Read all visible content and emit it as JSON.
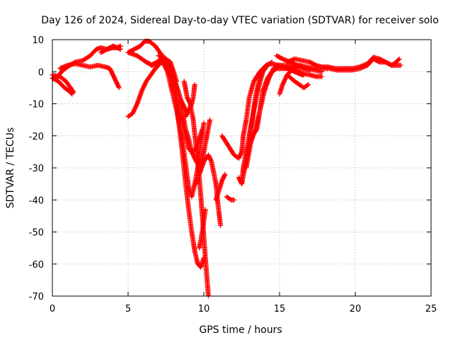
{
  "chart_data": {
    "type": "scatter",
    "title": "Day 126 of 2024, Sidereal Day-to-day VTEC variation (SDTVAR) for receiver solo",
    "xlabel": "GPS time / hours",
    "ylabel": "SDTVAR / TECUs",
    "xlim": [
      0,
      25
    ],
    "ylim": [
      -70,
      10
    ],
    "xticks": [
      0,
      5,
      10,
      15,
      20,
      25
    ],
    "yticks": [
      10,
      0,
      -10,
      -20,
      -30,
      -40,
      -50,
      -60,
      -70
    ],
    "grid": true,
    "marker": "+",
    "series": [
      {
        "color": "#ff0000",
        "tracks": [
          [
            [
              0.0,
              -2
            ],
            [
              0.3,
              -2
            ],
            [
              0.6,
              0
            ],
            [
              1.0,
              1.5
            ],
            [
              1.5,
              3
            ],
            [
              2.0,
              3.5
            ],
            [
              2.5,
              5
            ],
            [
              2.9,
              7
            ],
            [
              3.2,
              7.5
            ],
            [
              3.6,
              7
            ],
            [
              4.0,
              7.5
            ],
            [
              4.3,
              7.5
            ],
            [
              4.5,
              8
            ]
          ],
          [
            [
              0.0,
              -1
            ],
            [
              0.5,
              -1.5
            ],
            [
              0.9,
              -3
            ],
            [
              1.2,
              -5
            ],
            [
              1.4,
              -6.5
            ]
          ],
          [
            [
              0.0,
              -2
            ],
            [
              0.4,
              -3
            ],
            [
              0.8,
              -5
            ],
            [
              1.1,
              -6
            ],
            [
              1.3,
              -7
            ]
          ],
          [
            [
              0.5,
              1
            ],
            [
              1.0,
              2
            ],
            [
              1.5,
              2.5
            ],
            [
              2.0,
              2
            ],
            [
              2.5,
              1.5
            ],
            [
              3.0,
              2
            ],
            [
              3.5,
              1.5
            ],
            [
              3.8,
              1
            ],
            [
              4.0,
              -1
            ],
            [
              4.2,
              -3
            ],
            [
              4.4,
              -5
            ]
          ],
          [
            [
              3.2,
              6
            ],
            [
              3.6,
              7
            ],
            [
              4.0,
              8
            ],
            [
              4.3,
              7.5
            ],
            [
              4.5,
              7
            ]
          ],
          [
            [
              5.0,
              6
            ],
            [
              5.4,
              7
            ],
            [
              5.8,
              8
            ],
            [
              6.1,
              9.5
            ],
            [
              6.4,
              9.5
            ],
            [
              6.8,
              8
            ],
            [
              7.1,
              6
            ],
            [
              7.3,
              4
            ],
            [
              7.6,
              2.5
            ],
            [
              7.9,
              0
            ],
            [
              8.1,
              -3
            ],
            [
              8.4,
              -8
            ],
            [
              8.6,
              -13
            ],
            [
              8.8,
              -18
            ],
            [
              9.0,
              -21
            ],
            [
              9.2,
              -25
            ],
            [
              9.5,
              -28
            ],
            [
              9.8,
              -30
            ]
          ],
          [
            [
              5.0,
              -14
            ],
            [
              5.3,
              -13
            ],
            [
              5.6,
              -10
            ],
            [
              5.9,
              -6
            ],
            [
              6.2,
              -3
            ],
            [
              6.5,
              -1
            ],
            [
              6.8,
              1
            ],
            [
              7.0,
              2
            ],
            [
              7.2,
              3
            ],
            [
              7.4,
              2
            ],
            [
              7.6,
              0
            ],
            [
              7.8,
              -4
            ],
            [
              8.0,
              -8
            ],
            [
              8.2,
              -12
            ],
            [
              8.4,
              -17
            ],
            [
              8.6,
              -22
            ],
            [
              8.8,
              -29
            ],
            [
              9.0,
              -36
            ],
            [
              9.2,
              -39
            ],
            [
              9.4,
              -35
            ],
            [
              9.6,
              -30
            ],
            [
              9.8,
              -22
            ],
            [
              10.0,
              -16
            ]
          ],
          [
            [
              5.0,
              6
            ],
            [
              5.6,
              5
            ],
            [
              6.2,
              3
            ],
            [
              6.6,
              2
            ],
            [
              7.0,
              3
            ],
            [
              7.3,
              4
            ],
            [
              7.6,
              3
            ],
            [
              7.9,
              -2
            ],
            [
              8.2,
              -8
            ],
            [
              8.5,
              -14
            ],
            [
              8.8,
              -20
            ],
            [
              9.0,
              -24
            ],
            [
              9.2,
              -25
            ],
            [
              9.5,
              -24
            ],
            [
              9.7,
              -21
            ],
            [
              9.9,
              -18
            ]
          ],
          [
            [
              6.5,
              2
            ],
            [
              6.9,
              3
            ],
            [
              7.2,
              4
            ],
            [
              7.5,
              4
            ],
            [
              7.8,
              3
            ],
            [
              8.0,
              0
            ],
            [
              8.2,
              -3
            ]
          ],
          [
            [
              7.0,
              5
            ],
            [
              7.3,
              4.5
            ],
            [
              7.6,
              3
            ],
            [
              7.8,
              0
            ],
            [
              8.0,
              -5
            ],
            [
              8.2,
              -10
            ],
            [
              8.4,
              -18
            ],
            [
              8.6,
              -26
            ],
            [
              8.8,
              -35
            ],
            [
              9.0,
              -43
            ],
            [
              9.2,
              -50
            ],
            [
              9.4,
              -56
            ],
            [
              9.6,
              -60
            ],
            [
              9.8,
              -61
            ],
            [
              10.0,
              -58
            ]
          ],
          [
            [
              7.3,
              5
            ],
            [
              7.6,
              3
            ],
            [
              7.9,
              0
            ],
            [
              8.1,
              -3
            ],
            [
              8.3,
              -6
            ],
            [
              8.5,
              -9
            ],
            [
              8.7,
              -11
            ],
            [
              8.9,
              -13
            ]
          ],
          [
            [
              8.7,
              -3
            ],
            [
              8.9,
              -8
            ],
            [
              9.1,
              -10
            ],
            [
              9.3,
              -15
            ],
            [
              9.5,
              -24
            ],
            [
              9.7,
              -33
            ],
            [
              9.9,
              -45
            ],
            [
              10.1,
              -58
            ],
            [
              10.3,
              -70
            ]
          ],
          [
            [
              8.8,
              -14
            ],
            [
              9.0,
              -12
            ],
            [
              9.2,
              -10
            ],
            [
              9.3,
              -8
            ],
            [
              9.4,
              -4
            ]
          ],
          [
            [
              9.7,
              -55
            ],
            [
              9.9,
              -50
            ],
            [
              10.1,
              -43
            ]
          ],
          [
            [
              9.5,
              -35
            ],
            [
              9.7,
              -32
            ],
            [
              10.0,
              -28
            ],
            [
              10.3,
              -26
            ],
            [
              10.5,
              -28
            ],
            [
              10.8,
              -35
            ],
            [
              10.9,
              -40
            ],
            [
              11.0,
              -44
            ],
            [
              11.1,
              -48
            ]
          ],
          [
            [
              9.8,
              -30
            ],
            [
              10.0,
              -25
            ],
            [
              10.2,
              -20
            ],
            [
              10.4,
              -15
            ]
          ],
          [
            [
              10.8,
              -40
            ],
            [
              11.0,
              -37
            ],
            [
              11.2,
              -34
            ],
            [
              11.4,
              -32
            ]
          ],
          [
            [
              11.5,
              -39
            ],
            [
              11.8,
              -40
            ],
            [
              12.0,
              -40
            ]
          ],
          [
            [
              11.2,
              -20
            ],
            [
              11.6,
              -23
            ],
            [
              12.0,
              -26
            ],
            [
              12.3,
              -27
            ],
            [
              12.5,
              -25
            ],
            [
              12.6,
              -20
            ],
            [
              12.8,
              -15
            ],
            [
              13.0,
              -8
            ],
            [
              13.3,
              -3
            ],
            [
              13.7,
              0
            ],
            [
              14.0,
              1.5
            ]
          ],
          [
            [
              12.3,
              -33
            ],
            [
              12.5,
              -35
            ],
            [
              12.6,
              -30
            ],
            [
              12.8,
              -25
            ],
            [
              13.0,
              -20
            ],
            [
              13.2,
              -15
            ],
            [
              13.4,
              -8
            ],
            [
              13.6,
              -4
            ],
            [
              13.8,
              0
            ],
            [
              14.1,
              2
            ],
            [
              14.4,
              2.5
            ],
            [
              15.0,
              2
            ],
            [
              15.5,
              1
            ],
            [
              16.0,
              0
            ],
            [
              16.5,
              -1
            ]
          ],
          [
            [
              12.5,
              -35
            ],
            [
              12.7,
              -30
            ],
            [
              12.9,
              -25
            ],
            [
              13.2,
              -20
            ],
            [
              13.5,
              -18
            ],
            [
              13.7,
              -12
            ],
            [
              13.9,
              -6
            ],
            [
              14.2,
              -2
            ],
            [
              14.5,
              0
            ],
            [
              14.8,
              1
            ],
            [
              15.2,
              1
            ],
            [
              15.6,
              1
            ],
            [
              16.2,
              0
            ],
            [
              16.6,
              -1
            ]
          ],
          [
            [
              12.8,
              -30
            ],
            [
              13.1,
              -22
            ],
            [
              13.4,
              -18
            ],
            [
              13.7,
              -12
            ],
            [
              14.0,
              -6
            ],
            [
              14.3,
              -2
            ],
            [
              14.6,
              1
            ],
            [
              15.0,
              2
            ],
            [
              15.5,
              2
            ],
            [
              16.0,
              1.5
            ],
            [
              16.5,
              1
            ],
            [
              17.0,
              0.5
            ]
          ],
          [
            [
              13.0,
              -20
            ],
            [
              13.3,
              -12
            ],
            [
              13.6,
              -5
            ],
            [
              13.9,
              0
            ],
            [
              14.2,
              2
            ],
            [
              14.5,
              3
            ]
          ],
          [
            [
              15.0,
              -7
            ],
            [
              15.2,
              -4
            ],
            [
              15.5,
              -1
            ],
            [
              15.9,
              1
            ],
            [
              16.3,
              2
            ],
            [
              16.8,
              1.5
            ],
            [
              17.3,
              1
            ],
            [
              17.8,
              1
            ],
            [
              18.3,
              1
            ],
            [
              18.8,
              0.5
            ],
            [
              19.3,
              0.5
            ],
            [
              19.8,
              0.5
            ],
            [
              20.3,
              1
            ],
            [
              20.8,
              2
            ],
            [
              21.2,
              4
            ],
            [
              21.6,
              3
            ],
            [
              22.0,
              3
            ],
            [
              22.4,
              2
            ],
            [
              22.7,
              3
            ],
            [
              22.9,
              4
            ]
          ],
          [
            [
              15.5,
              -1
            ],
            [
              16.0,
              -3
            ],
            [
              16.3,
              -4
            ],
            [
              16.6,
              -5
            ],
            [
              16.9,
              -4
            ]
          ],
          [
            [
              14.8,
              5
            ],
            [
              15.2,
              4
            ],
            [
              15.7,
              3
            ],
            [
              16.2,
              2
            ],
            [
              16.8,
              1
            ],
            [
              17.3,
              0.5
            ],
            [
              17.8,
              0
            ]
          ],
          [
            [
              16.0,
              0
            ],
            [
              16.5,
              -0.5
            ],
            [
              17.0,
              -1
            ],
            [
              17.4,
              -1.5
            ],
            [
              17.8,
              -1.5
            ]
          ],
          [
            [
              15.5,
              3
            ],
            [
              16.0,
              4
            ],
            [
              16.5,
              3.5
            ],
            [
              17.0,
              3
            ],
            [
              17.4,
              2
            ],
            [
              17.8,
              1.5
            ],
            [
              18.2,
              1.5
            ],
            [
              18.7,
              1
            ],
            [
              19.2,
              1
            ],
            [
              19.8,
              1
            ],
            [
              20.3,
              1.5
            ],
            [
              20.8,
              2.5
            ],
            [
              21.2,
              4.5
            ],
            [
              21.6,
              4
            ],
            [
              22.0,
              3
            ],
            [
              22.4,
              2
            ],
            [
              22.8,
              2
            ],
            [
              23.0,
              2
            ]
          ]
        ]
      }
    ]
  }
}
